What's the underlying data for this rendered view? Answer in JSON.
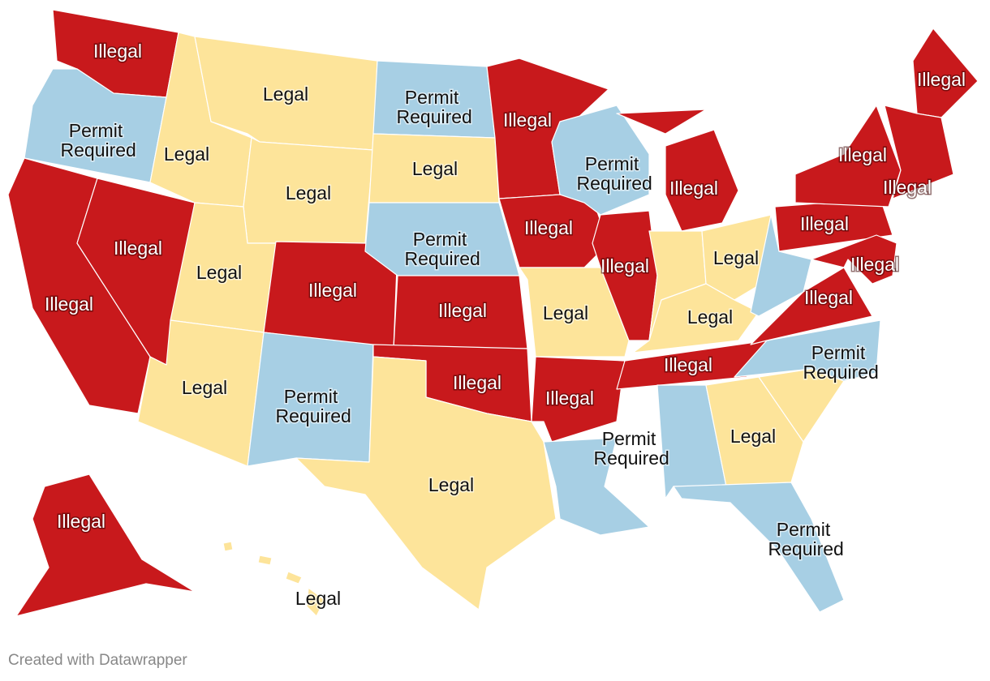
{
  "map": {
    "regions": [
      {
        "label": "Illegal",
        "color": "#c8191c"
      },
      {
        "label": "Permit Required",
        "color": "#a7cfe4"
      },
      {
        "label": "Illegal",
        "color": "#c8191c"
      },
      {
        "label": "Illegal",
        "color": "#c8191c"
      },
      {
        "label": "Legal",
        "color": "#fde49a"
      },
      {
        "label": "Legal",
        "color": "#fde49a"
      },
      {
        "label": "Legal",
        "color": "#fde49a"
      },
      {
        "label": "Legal",
        "color": "#fde49a"
      },
      {
        "label": "Legal",
        "color": "#fde49a"
      },
      {
        "label": "Illegal",
        "color": "#c8191c"
      },
      {
        "label": "Permit Required",
        "color": "#a7cfe4"
      },
      {
        "label": "Permit Required",
        "color": "#a7cfe4"
      },
      {
        "label": "Legal",
        "color": "#fde49a"
      },
      {
        "label": "Permit Required",
        "color": "#a7cfe4"
      },
      {
        "label": "Illegal",
        "color": "#c8191c"
      },
      {
        "label": "Illegal",
        "color": "#c8191c"
      },
      {
        "label": "Legal",
        "color": "#fde49a"
      },
      {
        "label": "Illegal",
        "color": "#c8191c"
      },
      {
        "label": "Illegal",
        "color": "#c8191c"
      },
      {
        "label": "Legal",
        "color": "#fde49a"
      },
      {
        "label": "Illegal",
        "color": "#c8191c"
      },
      {
        "label": "Permit Required",
        "color": "#a7cfe4"
      },
      {
        "label": "Permit Required",
        "color": "#a7cfe4"
      },
      {
        "label": "Illegal",
        "color": "#c8191c"
      },
      {
        "label": "Illegal",
        "color": "#c8191c"
      },
      {
        "label": null,
        "color": "#fde49a"
      },
      {
        "label": "Legal",
        "color": "#fde49a"
      },
      {
        "label": "Legal",
        "color": "#fde49a"
      },
      {
        "label": "Illegal",
        "color": "#c8191c"
      },
      {
        "label": null,
        "color": "#a7cfe4"
      },
      {
        "label": "Legal",
        "color": "#fde49a"
      },
      {
        "label": null,
        "color": "#fde49a"
      },
      {
        "label": "Permit Required",
        "color": "#a7cfe4"
      },
      {
        "label": "Permit Required",
        "color": "#a7cfe4"
      },
      {
        "label": "Illegal",
        "color": "#c8191c"
      },
      {
        "label": null,
        "color": "#a7cfe4"
      },
      {
        "label": "Illegal",
        "color": "#c8191c"
      },
      {
        "label": "Illegal",
        "color": "#c8191c"
      },
      {
        "label": "Illegal",
        "color": "#c8191c"
      },
      {
        "label": "Illegal",
        "color": "#c8191c"
      },
      {
        "label": "Illegal",
        "color": "#c8191c"
      },
      {
        "label": "Illegal",
        "color": "#c8191c"
      },
      {
        "label": "Legal",
        "color": "#fde49a"
      }
    ]
  },
  "footer": "Created with Datawrapper"
}
